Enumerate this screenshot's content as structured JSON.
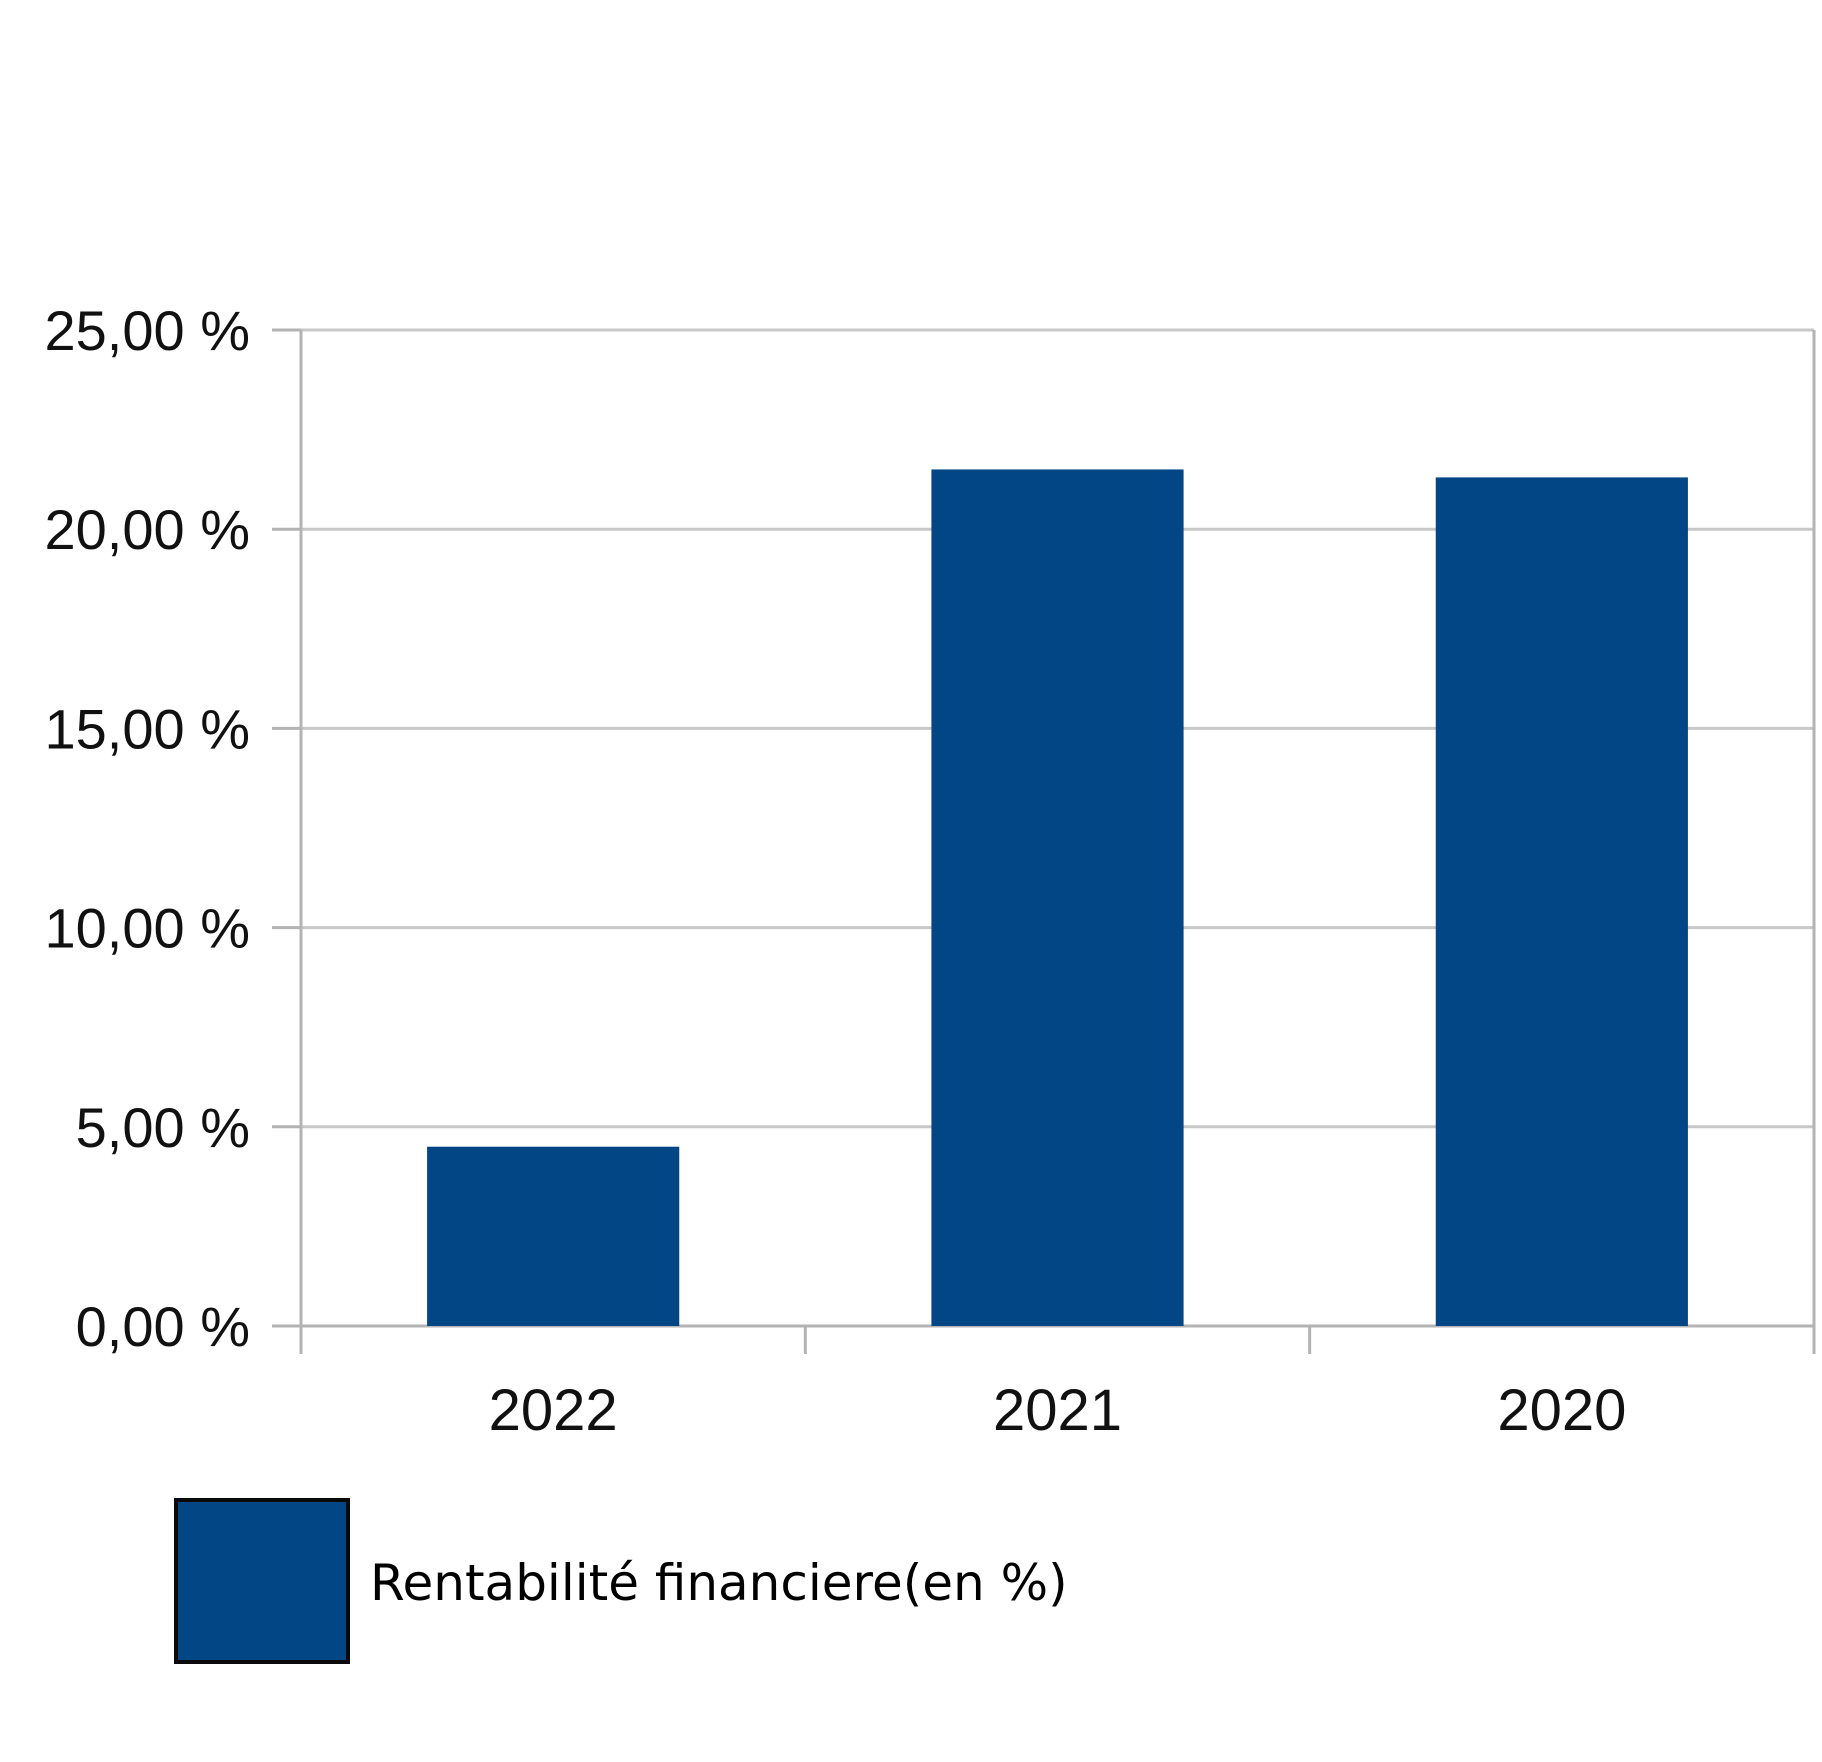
{
  "colors": {
    "bar": "#024686",
    "grid": "#c8c8c8",
    "axis": "#b3b3b3",
    "legend_border": "#0a0a0a"
  },
  "chart_data": {
    "type": "bar",
    "categories": [
      "2022",
      "2021",
      "2020"
    ],
    "series": [
      {
        "name": "Rentabilité financiere(en %)",
        "values": [
          4.5,
          21.5,
          21.3
        ]
      }
    ],
    "ylim": [
      0,
      25
    ],
    "yticks": [
      0,
      5,
      10,
      15,
      20,
      25
    ],
    "ytick_labels": [
      "0,00 %",
      "5,00 %",
      "10,00 %",
      "15,00 %",
      "20,00 %",
      "25,00 %"
    ],
    "grid": true,
    "legend": "bottom-left",
    "title": "",
    "xlabel": "",
    "ylabel": ""
  }
}
